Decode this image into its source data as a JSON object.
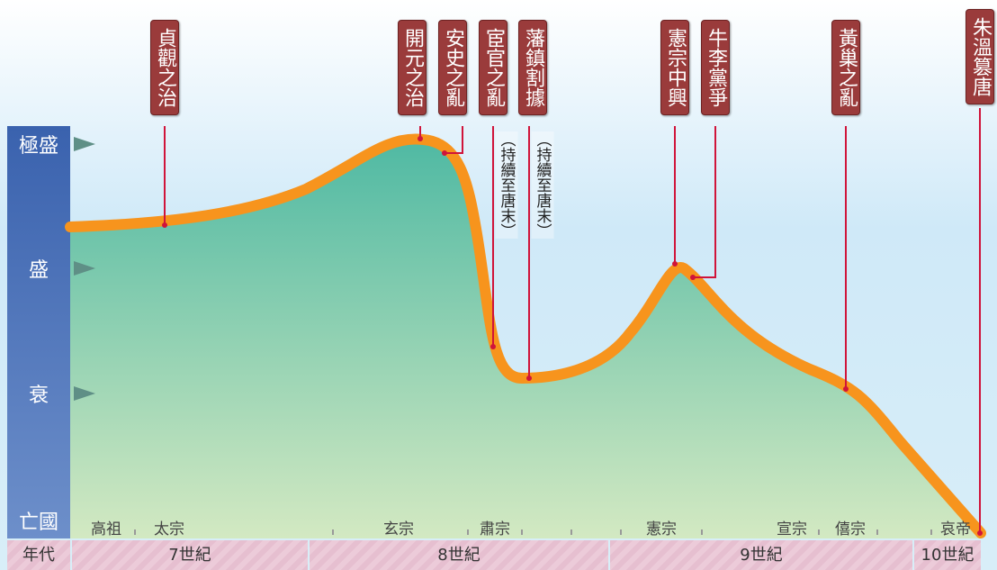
{
  "levels": [
    "極盛",
    "盛",
    "衰",
    "亡國"
  ],
  "events": [
    {
      "label": "貞觀之治"
    },
    {
      "label": "開元之治"
    },
    {
      "label": "安史之亂"
    },
    {
      "label": "宦官之亂",
      "note": "（持續至唐末）"
    },
    {
      "label": "藩鎮割據",
      "note": "（持續至唐末）"
    },
    {
      "label": "憲宗中興"
    },
    {
      "label": "牛李黨爭"
    },
    {
      "label": "黃巢之亂"
    },
    {
      "label": "朱溫篡唐"
    }
  ],
  "emperors": [
    "高祖",
    "太宗",
    "玄宗",
    "肅宗",
    "憲宗",
    "宣宗",
    "僖宗",
    "哀帝"
  ],
  "era_label": "年代",
  "centuries": [
    "7世紀",
    "8世紀",
    "9世紀",
    "10世紀"
  ]
}
